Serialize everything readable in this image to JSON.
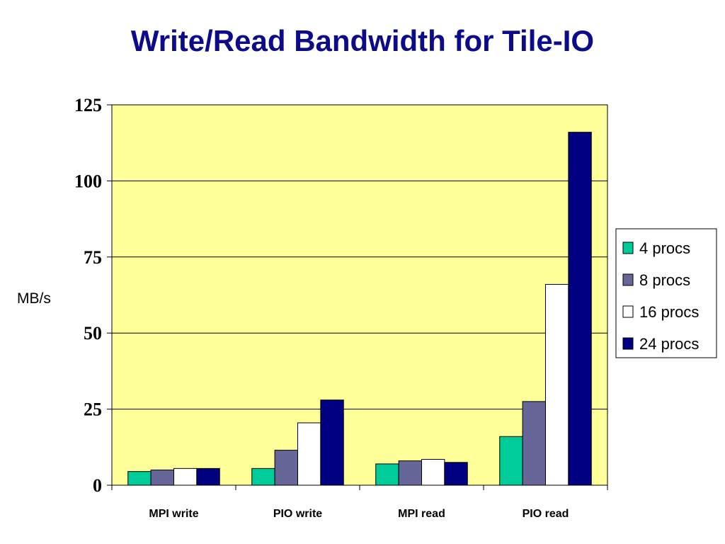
{
  "chart_data": {
    "type": "bar",
    "title": "Write/Read Bandwidth for Tile-IO",
    "ylabel": "MB/s",
    "xlabel": "",
    "ylim": [
      0,
      125
    ],
    "yticks": [
      "0",
      "25",
      "50",
      "75",
      "100",
      "125"
    ],
    "grid": true,
    "legend_position": "right",
    "plot_background": "#ffff99",
    "categories": [
      "MPI write",
      "PIO write",
      "MPI read",
      "PIO read"
    ],
    "series": [
      {
        "name": "4 procs",
        "color": "#00cc99",
        "values": [
          4.5,
          5.5,
          7.0,
          16.0
        ]
      },
      {
        "name": "8 procs",
        "color": "#666699",
        "values": [
          5.0,
          11.5,
          8.0,
          27.5
        ]
      },
      {
        "name": "16 procs",
        "color": "#ffffff",
        "values": [
          5.5,
          20.5,
          8.5,
          66.0
        ]
      },
      {
        "name": "24 procs",
        "color": "#000080",
        "values": [
          5.5,
          28.0,
          7.5,
          116.0
        ]
      }
    ]
  }
}
